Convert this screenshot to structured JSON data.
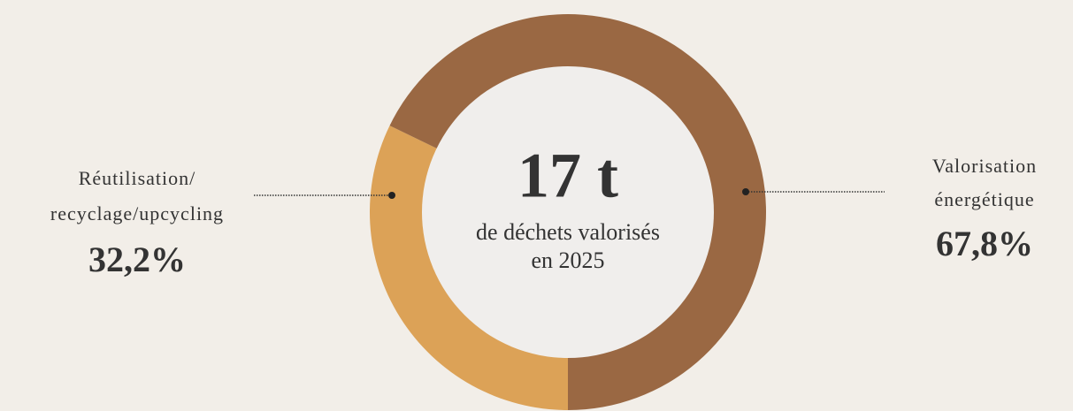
{
  "chart_data": {
    "type": "pie",
    "center_title": "17 t",
    "center_text": [
      "de déchets valorisés",
      "en 2025"
    ],
    "categories": [
      [
        "Réutilisation/",
        "recyclage/upcycling"
      ],
      [
        "Valorisation",
        "énergétique"
      ]
    ],
    "values": [
      32.2,
      67.8
    ],
    "value_labels": [
      "32,2%",
      "67,8%"
    ],
    "colors": [
      "#dca257",
      "#9a6843"
    ]
  }
}
